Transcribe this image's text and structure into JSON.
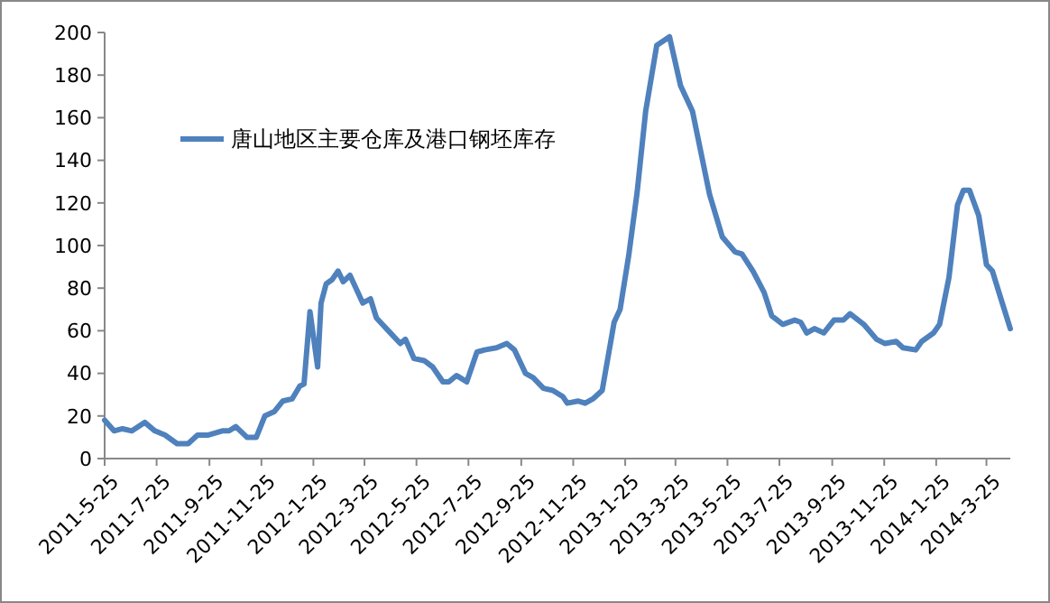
{
  "chart_data": {
    "type": "line",
    "legend": "top left",
    "grid": false,
    "marker": "none",
    "line_style": "solid",
    "x": [
      "2011-05-25",
      "2011-06-05",
      "2011-06-15",
      "2011-06-26",
      "2011-07-11",
      "2011-07-23",
      "2011-08-04",
      "2011-08-18",
      "2011-08-31",
      "2011-09-11",
      "2011-09-23",
      "2011-10-10",
      "2011-10-18",
      "2011-10-26",
      "2011-11-08",
      "2011-11-19",
      "2011-11-29",
      "2011-12-10",
      "2011-12-20",
      "2011-12-31",
      "2012-01-09",
      "2012-01-14",
      "2012-01-21",
      "2012-01-30",
      "2012-02-03",
      "2012-02-09",
      "2012-02-16",
      "2012-02-23",
      "2012-02-29",
      "2012-03-08",
      "2012-03-23",
      "2012-04-01",
      "2012-04-08",
      "2012-04-22",
      "2012-05-06",
      "2012-05-12",
      "2012-05-22",
      "2012-06-03",
      "2012-06-13",
      "2012-06-25",
      "2012-07-02",
      "2012-07-11",
      "2012-07-23",
      "2012-08-04",
      "2012-08-13",
      "2012-08-27",
      "2012-09-08",
      "2012-09-17",
      "2012-09-30",
      "2012-10-09",
      "2012-10-21",
      "2012-11-01",
      "2012-11-13",
      "2012-11-18",
      "2012-12-01",
      "2012-12-09",
      "2012-12-18",
      "2012-12-29",
      "2013-01-12",
      "2013-01-19",
      "2013-01-29",
      "2013-02-08",
      "2013-02-18",
      "2013-03-03",
      "2013-03-18",
      "2013-03-31",
      "2013-04-14",
      "2013-05-04",
      "2013-05-19",
      "2013-06-03",
      "2013-06-11",
      "2013-06-24",
      "2013-07-07",
      "2013-07-16",
      "2013-07-29",
      "2013-08-12",
      "2013-08-19",
      "2013-08-26",
      "2013-09-04",
      "2013-09-15",
      "2013-09-27",
      "2013-10-08",
      "2013-10-16",
      "2013-11-01",
      "2013-11-16",
      "2013-11-26",
      "2013-12-09",
      "2013-12-17",
      "2014-01-01",
      "2014-01-08",
      "2014-01-22",
      "2014-01-29",
      "2014-02-09",
      "2014-02-19",
      "2014-02-26",
      "2014-03-05",
      "2014-03-16",
      "2014-03-25",
      "2014-04-01",
      "2014-04-11",
      "2014-04-22"
    ],
    "series": [
      {
        "name": "唐山地区主要仓库及港口钢坯库存",
        "color": "#4f81bd",
        "values": [
          18,
          13,
          14,
          13,
          17,
          13,
          11,
          7,
          7,
          11,
          11,
          13,
          13,
          15,
          10,
          10,
          20,
          22,
          27,
          28,
          34,
          35,
          69,
          43,
          73,
          82,
          84,
          88,
          83,
          86,
          73,
          75,
          66,
          60,
          54,
          56,
          47,
          46,
          43,
          36,
          36,
          39,
          36,
          50,
          51,
          52,
          54,
          51,
          40,
          38,
          33,
          32,
          29,
          26,
          27,
          26,
          28,
          32,
          64,
          70,
          95,
          125,
          163,
          194,
          198,
          175,
          163,
          124,
          104,
          97,
          96,
          88,
          78,
          67,
          63,
          65,
          64,
          59,
          61,
          59,
          65,
          65,
          68,
          63,
          56,
          54,
          55,
          52,
          51,
          55,
          59,
          63,
          85,
          119,
          126,
          126,
          114,
          91,
          88,
          75,
          61
        ]
      }
    ],
    "xlim": [
      "2011-05-25",
      "2014-04-22"
    ],
    "xticks": [
      {
        "value": "2011-05-25",
        "label": "2011-5-25"
      },
      {
        "value": "2011-07-25",
        "label": "2011-7-25"
      },
      {
        "value": "2011-09-25",
        "label": "2011-9-25"
      },
      {
        "value": "2011-11-25",
        "label": "2011-11-25"
      },
      {
        "value": "2012-01-25",
        "label": "2012-1-25"
      },
      {
        "value": "2012-03-25",
        "label": "2012-3-25"
      },
      {
        "value": "2012-05-25",
        "label": "2012-5-25"
      },
      {
        "value": "2012-07-25",
        "label": "2012-7-25"
      },
      {
        "value": "2012-09-25",
        "label": "2012-9-25"
      },
      {
        "value": "2012-11-25",
        "label": "2012-11-25"
      },
      {
        "value": "2013-01-25",
        "label": "2013-1-25"
      },
      {
        "value": "2013-03-25",
        "label": "2013-3-25"
      },
      {
        "value": "2013-05-25",
        "label": "2013-5-25"
      },
      {
        "value": "2013-07-25",
        "label": "2013-7-25"
      },
      {
        "value": "2013-09-25",
        "label": "2013-9-25"
      },
      {
        "value": "2013-11-25",
        "label": "2013-11-25"
      },
      {
        "value": "2014-01-25",
        "label": "2014-1-25"
      },
      {
        "value": "2014-03-25",
        "label": "2014-3-25"
      }
    ],
    "ylim": [
      0,
      200
    ],
    "yticks": [
      0,
      20,
      40,
      60,
      80,
      100,
      120,
      140,
      160,
      180,
      200
    ]
  }
}
